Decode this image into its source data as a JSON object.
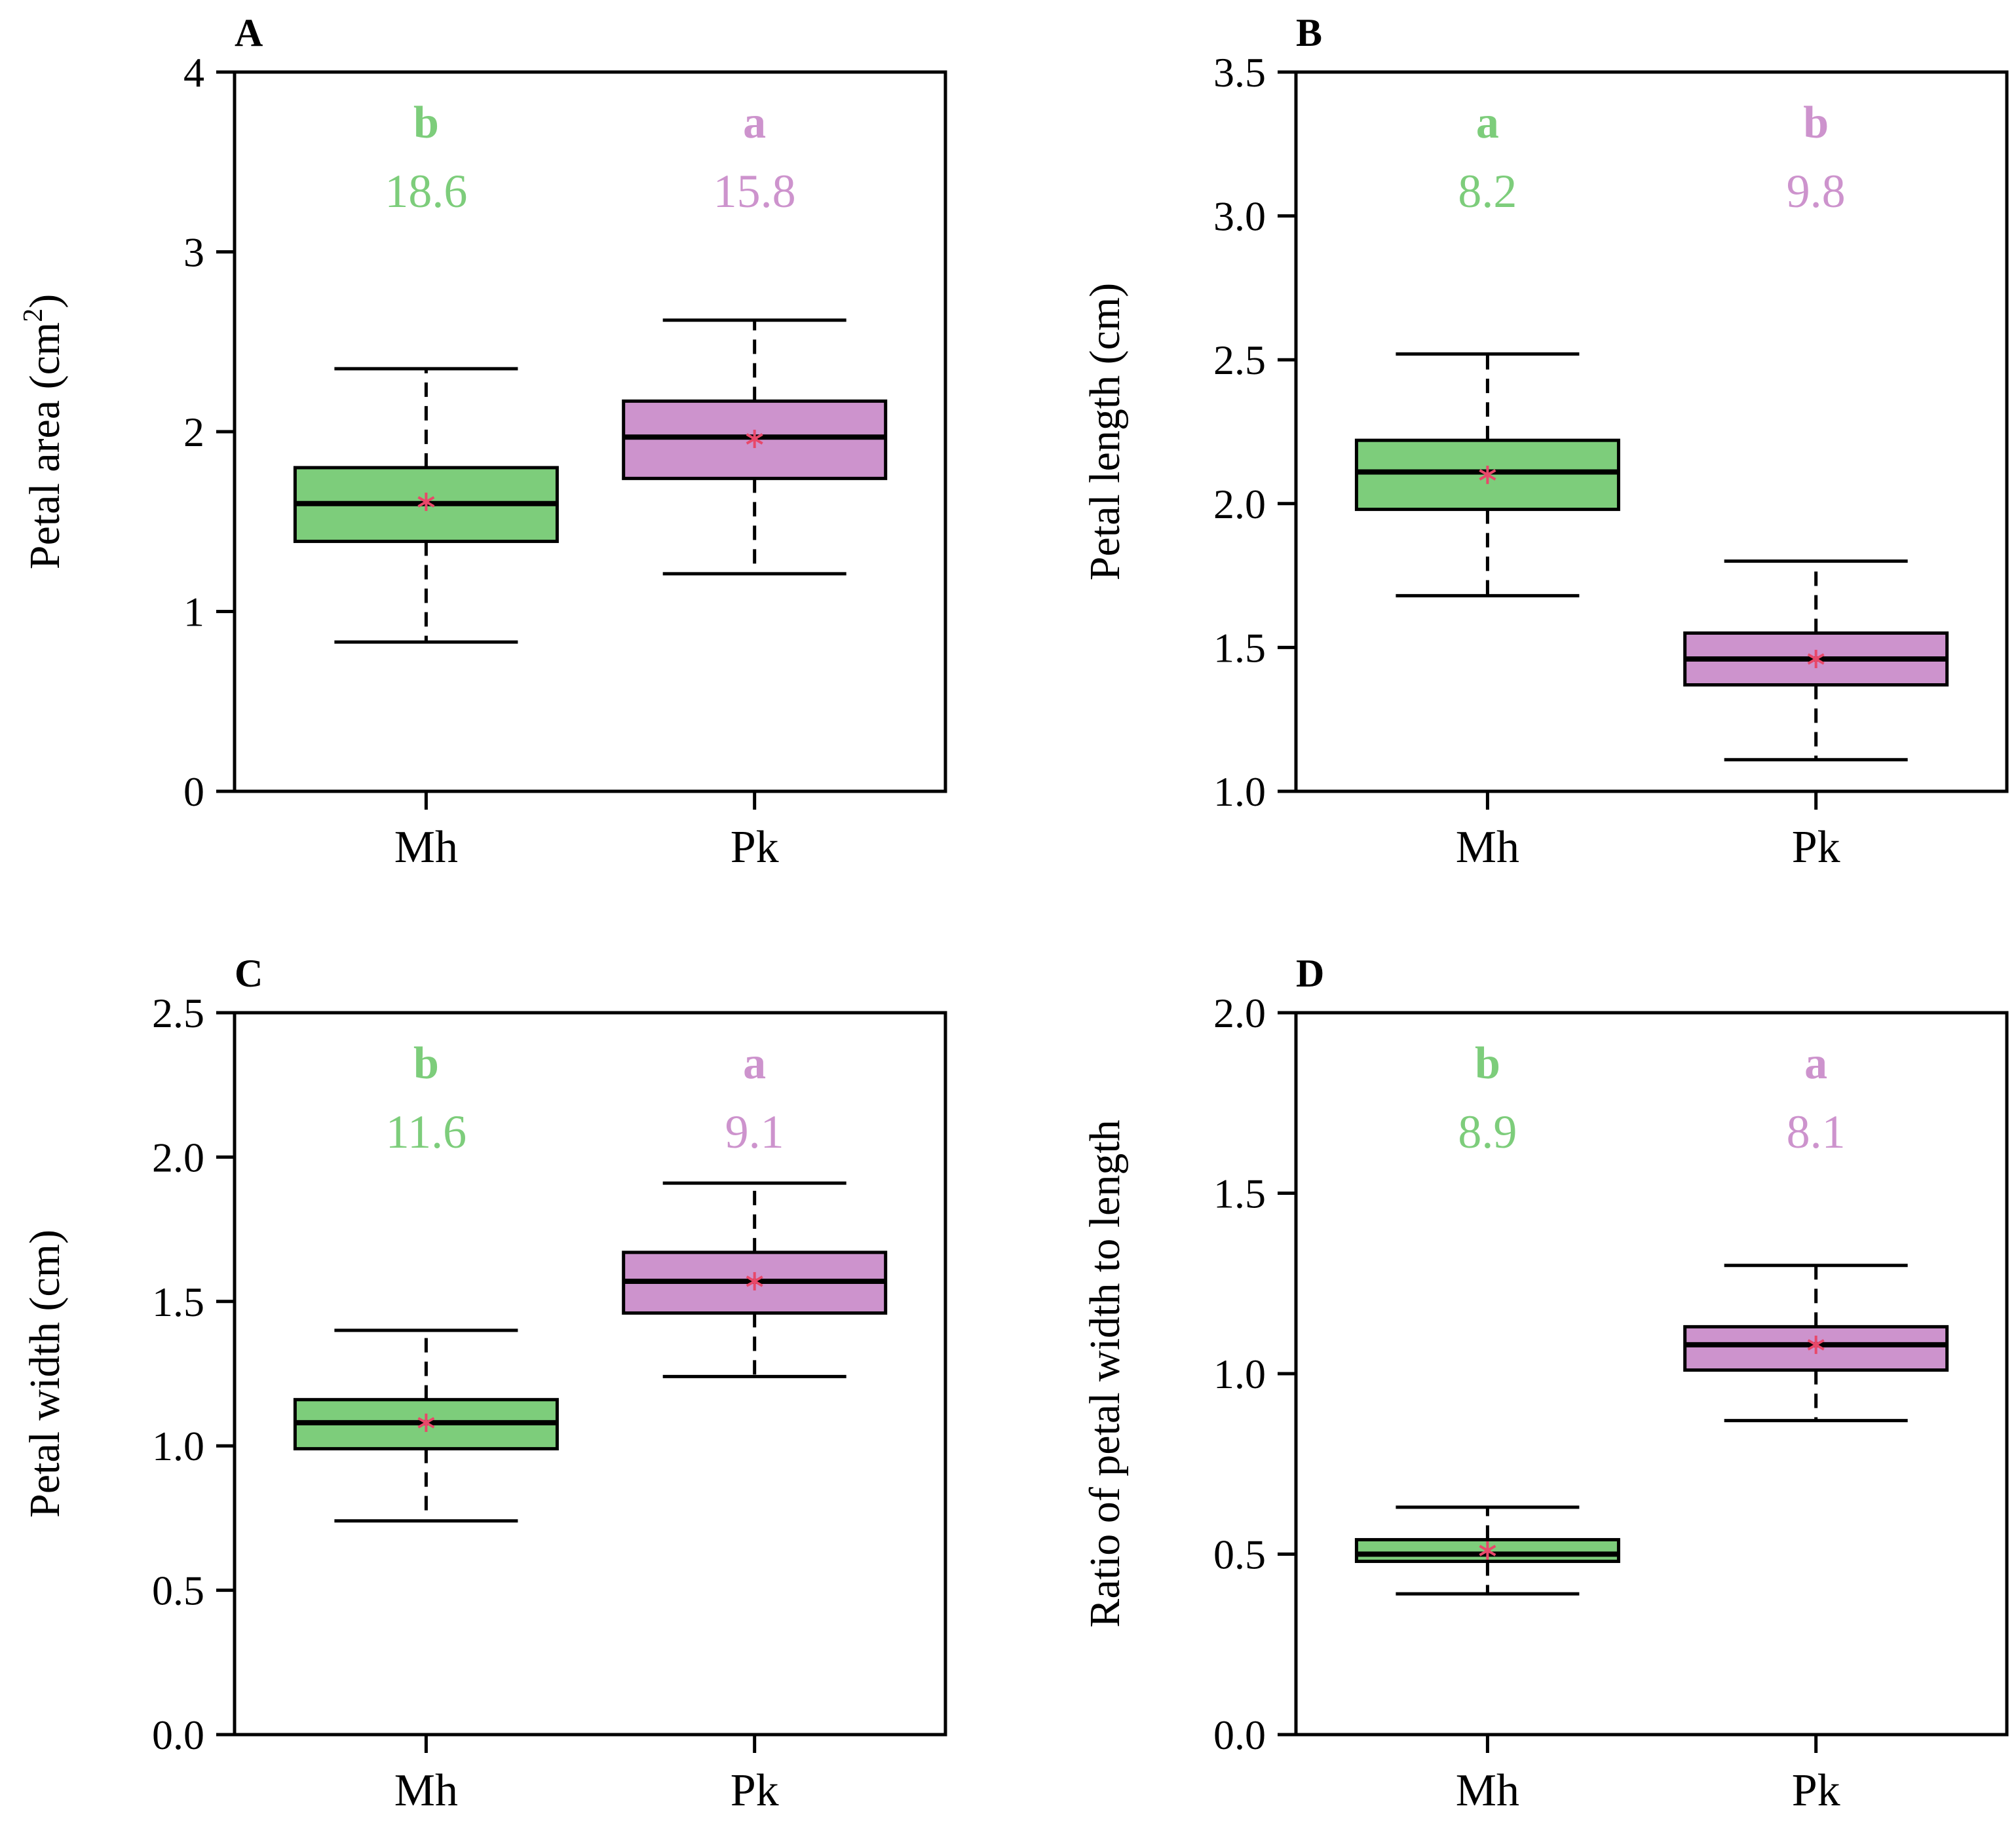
{
  "colors": {
    "Mh": "#7dcd7b",
    "Pk": "#cd93cd",
    "mean_marker": "#e8486a",
    "axis": "#000000"
  },
  "chart_data": [
    {
      "panel": "A",
      "type": "box",
      "ylabel": "Petal area (cm2)",
      "ylabel_main": "Petal area (cm",
      "ylabel_sup": "2",
      "ylabel_end": ")",
      "ylim": [
        0,
        4
      ],
      "yticks": [
        0,
        1,
        2,
        3,
        4
      ],
      "ytick_labels": [
        "0",
        "1",
        "2",
        "3",
        "4"
      ],
      "categories": [
        "Mh",
        "Pk"
      ],
      "boxes": [
        {
          "group": "Mh",
          "whisker_low": 0.83,
          "q1": 1.39,
          "median": 1.6,
          "q3": 1.8,
          "whisker_high": 2.35,
          "mean": 1.61,
          "letter": "b",
          "value_label": "18.6"
        },
        {
          "group": "Pk",
          "whisker_low": 1.21,
          "q1": 1.74,
          "median": 1.97,
          "q3": 2.17,
          "whisker_high": 2.62,
          "mean": 1.96,
          "letter": "a",
          "value_label": "15.8"
        }
      ]
    },
    {
      "panel": "B",
      "type": "box",
      "ylabel": "Petal length (cm)",
      "ylabel_main": "Petal length (cm)",
      "ylim": [
        1.0,
        3.5
      ],
      "yticks": [
        1.0,
        1.5,
        2.0,
        2.5,
        3.0,
        3.5
      ],
      "ytick_labels": [
        "1.0",
        "1.5",
        "2.0",
        "2.5",
        "3.0",
        "3.5"
      ],
      "categories": [
        "Mh",
        "Pk"
      ],
      "boxes": [
        {
          "group": "Mh",
          "whisker_low": 1.68,
          "q1": 1.98,
          "median": 2.11,
          "q3": 2.22,
          "whisker_high": 2.52,
          "mean": 2.1,
          "letter": "a",
          "value_label": "8.2"
        },
        {
          "group": "Pk",
          "whisker_low": 1.11,
          "q1": 1.37,
          "median": 1.46,
          "q3": 1.55,
          "whisker_high": 1.8,
          "mean": 1.46,
          "letter": "b",
          "value_label": "9.8"
        }
      ]
    },
    {
      "panel": "C",
      "type": "box",
      "ylabel": "Petal width (cm)",
      "ylabel_main": "Petal width (cm)",
      "ylim": [
        0.0,
        2.5
      ],
      "yticks": [
        0.0,
        0.5,
        1.0,
        1.5,
        2.0,
        2.5
      ],
      "ytick_labels": [
        "0.0",
        "0.5",
        "1.0",
        "1.5",
        "2.0",
        "2.5"
      ],
      "categories": [
        "Mh",
        "Pk"
      ],
      "boxes": [
        {
          "group": "Mh",
          "whisker_low": 0.74,
          "q1": 0.99,
          "median": 1.08,
          "q3": 1.16,
          "whisker_high": 1.4,
          "mean": 1.08,
          "letter": "b",
          "value_label": "11.6"
        },
        {
          "group": "Pk",
          "whisker_low": 1.24,
          "q1": 1.46,
          "median": 1.57,
          "q3": 1.67,
          "whisker_high": 1.91,
          "mean": 1.57,
          "letter": "a",
          "value_label": "9.1"
        }
      ]
    },
    {
      "panel": "D",
      "type": "box",
      "ylabel": "Ratio of petal width to length",
      "ylabel_main": "Ratio of petal width to length",
      "ylim": [
        0.0,
        2.0
      ],
      "yticks": [
        0.0,
        0.5,
        1.0,
        1.5,
        2.0
      ],
      "ytick_labels": [
        "0.0",
        "0.5",
        "1.0",
        "1.5",
        "2.0"
      ],
      "categories": [
        "Mh",
        "Pk"
      ],
      "boxes": [
        {
          "group": "Mh",
          "whisker_low": 0.39,
          "q1": 0.48,
          "median": 0.5,
          "q3": 0.54,
          "whisker_high": 0.63,
          "mean": 0.51,
          "letter": "b",
          "value_label": "8.9"
        },
        {
          "group": "Pk",
          "whisker_low": 0.87,
          "q1": 1.01,
          "median": 1.08,
          "q3": 1.13,
          "whisker_high": 1.3,
          "mean": 1.08,
          "letter": "a",
          "value_label": "8.1"
        }
      ]
    }
  ]
}
